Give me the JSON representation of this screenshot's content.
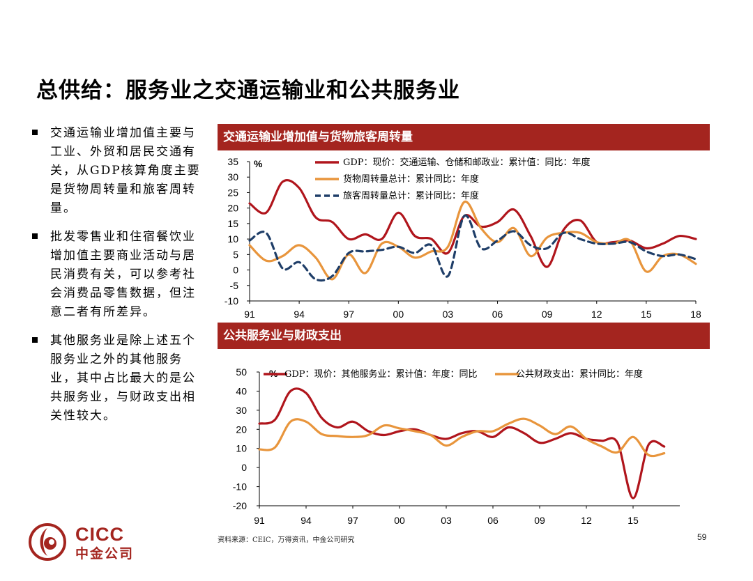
{
  "slide": {
    "title": "总供给：服务业之交通运输业和公共服务业",
    "bullets": [
      "交通运输业增加值主要与工业、外贸和居民交通有关，从GDP核算角度主要是货物周转量和旅客周转量。",
      "批发零售业和住宿餐饮业增加值主要商业活动与居民消费有关，可以参考社会消费品零售数据，但注意二者有所差异。",
      "其他服务业是除上述五个服务业之外的其他服务业，其中占比最大的是公共服务业，与财政支出相关性较大。"
    ],
    "source": "资料来源：CEIC，万得资讯，中金公司研究",
    "page_number": "59",
    "logo": {
      "line1": "CICC",
      "line2": "中金公司",
      "color": "#a4251f"
    },
    "accent_color": "#a4251f"
  },
  "chart_data": [
    {
      "type": "line",
      "title": "交通运输业增加值与货物旅客周转量",
      "ylabel": "%",
      "ylim": [
        -10,
        35
      ],
      "yticks": [
        "35",
        "30",
        "25",
        "20",
        "15",
        "10",
        "5",
        "0",
        "-5",
        "-10"
      ],
      "xlim": [
        1991,
        2018
      ],
      "xticks": [
        "91",
        "94",
        "97",
        "00",
        "03",
        "06",
        "09",
        "12",
        "15",
        "18"
      ],
      "legend_position": "top",
      "series": [
        {
          "name": "GDP：现价：交通运输、仓储和邮政业：累计值：同比：年度",
          "color": "#b0151c",
          "style": "solid",
          "x": [
            1991,
            1992,
            1993,
            1994,
            1995,
            1996,
            1997,
            1998,
            1999,
            2000,
            2001,
            2002,
            2003,
            2004,
            2005,
            2006,
            2007,
            2008,
            2009,
            2010,
            2011,
            2012,
            2013,
            2014,
            2015,
            2016,
            2017,
            2018
          ],
          "values": [
            21.5,
            18.5,
            28.5,
            26.5,
            17.0,
            15.5,
            10.0,
            11.5,
            10.0,
            18.5,
            11.0,
            10.0,
            5.5,
            17.5,
            14.0,
            15.5,
            19.5,
            11.0,
            1.0,
            13.0,
            16.0,
            9.0,
            9.0,
            9.5,
            7.0,
            8.5,
            11.0,
            10.0
          ]
        },
        {
          "name": "货物周转量总计：累计同比：年度",
          "color": "#e8953c",
          "style": "solid",
          "x": [
            1991,
            1992,
            1993,
            1994,
            1995,
            1996,
            1997,
            1998,
            1999,
            2000,
            2001,
            2002,
            2003,
            2004,
            2005,
            2006,
            2007,
            2008,
            2009,
            2010,
            2011,
            2012,
            2013,
            2014,
            2015,
            2016,
            2017,
            2018
          ],
          "values": [
            8.0,
            3.0,
            4.5,
            8.0,
            4.0,
            -3.0,
            5.0,
            -1.0,
            8.5,
            7.5,
            4.0,
            6.0,
            7.5,
            22.0,
            13.5,
            9.0,
            13.5,
            4.5,
            10.5,
            12.0,
            12.0,
            9.0,
            8.5,
            9.5,
            -0.5,
            4.5,
            5.0,
            2.0
          ]
        },
        {
          "name": "旅客周转量总计：累计同比：年度",
          "color": "#1f3e68",
          "style": "dashed",
          "x": [
            1991,
            1992,
            1993,
            1994,
            1995,
            1996,
            1997,
            1998,
            1999,
            2000,
            2001,
            2002,
            2003,
            2004,
            2005,
            2006,
            2007,
            2008,
            2009,
            2010,
            2011,
            2012,
            2013,
            2014,
            2015,
            2016,
            2017,
            2018
          ],
          "values": [
            9.5,
            12.0,
            0.5,
            2.5,
            -3.0,
            -2.0,
            5.5,
            6.0,
            6.5,
            7.5,
            5.5,
            8.0,
            -2.0,
            17.5,
            7.0,
            9.5,
            12.5,
            8.0,
            7.0,
            12.0,
            10.0,
            8.5,
            8.5,
            9.0,
            6.0,
            4.5,
            5.0,
            3.5
          ]
        }
      ]
    },
    {
      "type": "line",
      "title": "公共服务业与财政支出",
      "ylabel": "%",
      "ylim": [
        -20,
        50
      ],
      "yticks": [
        "50",
        "40",
        "30",
        "20",
        "10",
        "0",
        "-10",
        "-20"
      ],
      "xlim": [
        1991,
        2018
      ],
      "xticks": [
        "91",
        "94",
        "97",
        "00",
        "03",
        "06",
        "09",
        "12",
        "15"
      ],
      "legend_position": "top",
      "series": [
        {
          "name": "GDP：现价：其他服务业：累计值：年度：同比",
          "color": "#b0151c",
          "style": "solid",
          "x": [
            1991,
            1992,
            1993,
            1994,
            1995,
            1996,
            1997,
            1998,
            1999,
            2000,
            2001,
            2002,
            2003,
            2004,
            2005,
            2006,
            2007,
            2008,
            2009,
            2010,
            2011,
            2012,
            2013,
            2014,
            2015,
            2016,
            2017
          ],
          "values": [
            23,
            25,
            40,
            39,
            26,
            21,
            24,
            19,
            17,
            19,
            20,
            17,
            15,
            18,
            19,
            16,
            21,
            18,
            13,
            15,
            18,
            15,
            14,
            13,
            -16,
            12,
            11
          ]
        },
        {
          "name": "公共财政支出：累计同比：年度",
          "color": "#e8953c",
          "style": "solid",
          "x": [
            1991,
            1992,
            1993,
            1994,
            1995,
            1996,
            1997,
            1998,
            1999,
            2000,
            2001,
            2002,
            2003,
            2004,
            2005,
            2006,
            2007,
            2008,
            2009,
            2010,
            2011,
            2012,
            2013,
            2014,
            2015,
            2016,
            2017
          ],
          "values": [
            9.5,
            10.5,
            24,
            24,
            17.5,
            16.5,
            16,
            17,
            22,
            20.5,
            19,
            17,
            11.5,
            16,
            19,
            19,
            23,
            25.5,
            22,
            17.5,
            21.5,
            15,
            11,
            8,
            16,
            6.5,
            7.5
          ]
        }
      ]
    }
  ]
}
